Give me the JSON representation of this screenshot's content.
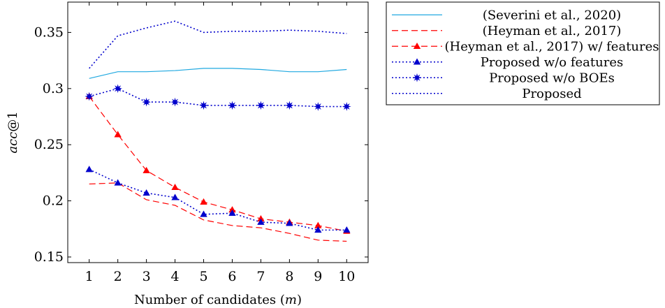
{
  "chart_data": {
    "type": "line",
    "title": "",
    "xlabel": "Number of candidates (m)",
    "xlabel_parts": {
      "text": "Number of candidates (",
      "var": "m",
      "close": ")"
    },
    "ylabel": "acc@1",
    "ylabel_parts": {
      "var": "acc",
      "suffix": "@1"
    },
    "x": [
      1,
      2,
      3,
      4,
      5,
      6,
      7,
      8,
      9,
      10
    ],
    "xticks": [
      "1",
      "2",
      "3",
      "4",
      "5",
      "6",
      "7",
      "8",
      "9",
      "10"
    ],
    "yticks": [
      "0.15",
      "0.2",
      "0.25",
      "0.3",
      "0.35"
    ],
    "ytick_values": [
      0.15,
      0.2,
      0.25,
      0.3,
      0.35
    ],
    "xlim": [
      0.25,
      10.75
    ],
    "ylim": [
      0.145,
      0.377
    ],
    "grid": false,
    "legend_position": "outside-right",
    "series": [
      {
        "name": "(Severini et al., 2020)",
        "color": "#1fa8e0",
        "dash": "solid",
        "marker": "none",
        "values": [
          0.309,
          0.315,
          0.315,
          0.316,
          0.318,
          0.318,
          0.317,
          0.315,
          0.315,
          0.317
        ]
      },
      {
        "name": "(Heyman et al., 2017)",
        "color": "#ff0000",
        "dash": "dashed",
        "marker": "none",
        "values": [
          0.215,
          0.216,
          0.201,
          0.196,
          0.183,
          0.178,
          0.176,
          0.171,
          0.165,
          0.164
        ]
      },
      {
        "name": "(Heyman et al., 2017) w/ features",
        "color": "#ff0000",
        "dash": "dashed",
        "marker": "triangle",
        "values": [
          0.293,
          0.259,
          0.227,
          0.212,
          0.199,
          0.192,
          0.184,
          0.181,
          0.178,
          0.173
        ]
      },
      {
        "name": "Proposed w/o features",
        "color": "#0000cc",
        "dash": "dotted",
        "marker": "triangle",
        "values": [
          0.228,
          0.216,
          0.207,
          0.203,
          0.188,
          0.189,
          0.181,
          0.18,
          0.174,
          0.174
        ]
      },
      {
        "name": "Proposed w/o BOEs",
        "color": "#0000cc",
        "dash": "dotted",
        "marker": "star",
        "values": [
          0.293,
          0.3,
          0.288,
          0.288,
          0.285,
          0.285,
          0.285,
          0.285,
          0.284,
          0.284
        ]
      },
      {
        "name": "Proposed",
        "color": "#0000cc",
        "dash": "dotted",
        "marker": "none",
        "values": [
          0.318,
          0.347,
          0.354,
          0.36,
          0.35,
          0.351,
          0.351,
          0.352,
          0.351,
          0.349
        ]
      }
    ]
  }
}
